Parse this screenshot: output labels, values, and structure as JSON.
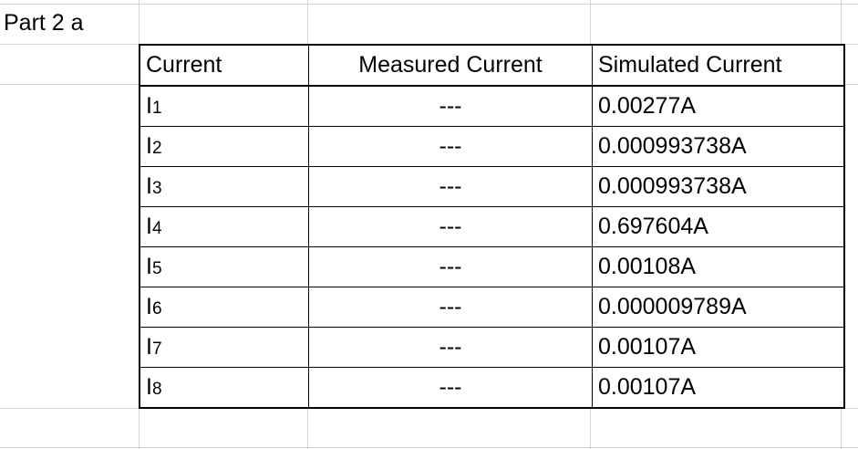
{
  "sheet": {
    "heading": "Part 2 a"
  },
  "table": {
    "headers": [
      "Current",
      "Measured Current",
      "Simulated Current"
    ],
    "rows": [
      {
        "label": "I",
        "sub": "1",
        "measured": "---",
        "simulated": "0.00277A"
      },
      {
        "label": "I",
        "sub": "2",
        "measured": "---",
        "simulated": "0.000993738A"
      },
      {
        "label": "I",
        "sub": "3",
        "measured": "---",
        "simulated": "0.000993738A"
      },
      {
        "label": "I",
        "sub": "4",
        "measured": "---",
        "simulated": "0.697604A"
      },
      {
        "label": "I",
        "sub": "5",
        "measured": "---",
        "simulated": "0.00108A"
      },
      {
        "label": "I",
        "sub": "6",
        "measured": "---",
        "simulated": "0.000009789A"
      },
      {
        "label": "I",
        "sub": "7",
        "measured": "---",
        "simulated": "0.00107A"
      },
      {
        "label": "I",
        "sub": "8",
        "measured": "---",
        "simulated": "0.00107A"
      }
    ]
  }
}
